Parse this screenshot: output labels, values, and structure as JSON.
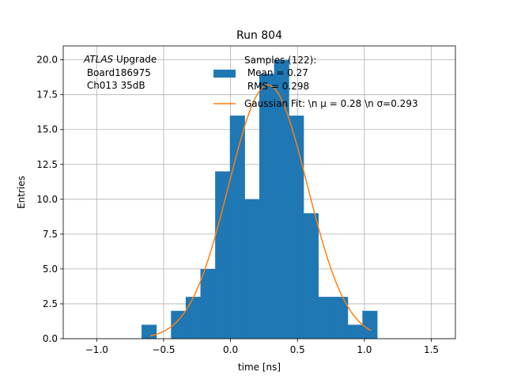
{
  "chart_data": {
    "type": "bar",
    "title": "Run 804",
    "xlabel": "time [ns]",
    "ylabel": "Entries",
    "xlim": [
      -1.25,
      1.68
    ],
    "ylim": [
      0,
      21
    ],
    "grid": true,
    "legend_placement": "top-right",
    "xticks": [
      {
        "value": -1.0,
        "label": "−1.0"
      },
      {
        "value": -0.5,
        "label": "−0.5"
      },
      {
        "value": 0.0,
        "label": "0.0"
      },
      {
        "value": 0.5,
        "label": "0.5"
      },
      {
        "value": 1.0,
        "label": "1.0"
      },
      {
        "value": 1.5,
        "label": "1.5"
      }
    ],
    "yticks": [
      {
        "value": 0.0,
        "label": "0.0"
      },
      {
        "value": 2.5,
        "label": "2.5"
      },
      {
        "value": 5.0,
        "label": "5.0"
      },
      {
        "value": 7.5,
        "label": "7.5"
      },
      {
        "value": 10.0,
        "label": "10.0"
      },
      {
        "value": 12.5,
        "label": "12.5"
      },
      {
        "value": 15.0,
        "label": "15.0"
      },
      {
        "value": 17.5,
        "label": "17.5"
      },
      {
        "value": 20.0,
        "label": "20.0"
      }
    ],
    "histogram": {
      "color": "#1f77b4",
      "bins": [
        {
          "x0": -0.665,
          "x1": -0.555,
          "count": 1
        },
        {
          "x0": -0.445,
          "x1": -0.335,
          "count": 2
        },
        {
          "x0": -0.335,
          "x1": -0.225,
          "count": 3
        },
        {
          "x0": -0.225,
          "x1": -0.115,
          "count": 5
        },
        {
          "x0": -0.115,
          "x1": -0.005,
          "count": 12
        },
        {
          "x0": -0.005,
          "x1": 0.105,
          "count": 16
        },
        {
          "x0": 0.105,
          "x1": 0.215,
          "count": 10
        },
        {
          "x0": 0.215,
          "x1": 0.325,
          "count": 19
        },
        {
          "x0": 0.325,
          "x1": 0.435,
          "count": 20
        },
        {
          "x0": 0.435,
          "x1": 0.545,
          "count": 16
        },
        {
          "x0": 0.545,
          "x1": 0.655,
          "count": 9
        },
        {
          "x0": 0.655,
          "x1": 0.765,
          "count": 3
        },
        {
          "x0": 0.765,
          "x1": 0.875,
          "count": 3
        },
        {
          "x0": 0.875,
          "x1": 0.985,
          "count": 1
        },
        {
          "x0": 0.985,
          "x1": 1.095,
          "count": 2
        }
      ]
    },
    "fit": {
      "color": "#ff7f0e",
      "mu": 0.28,
      "sigma": 0.293,
      "amplitude": 18.2,
      "x_range": [
        -0.6,
        1.05
      ]
    },
    "legend": {
      "samples_lines": [
        "Samples (122):",
        " Mean = 0.27",
        " RMS = 0.298"
      ],
      "fit_label": "Gaussian Fit: \\n μ = 0.28 \\n σ=0.293"
    },
    "annotation": {
      "line1_italic": "ATLAS",
      "line1_rest": " Upgrade",
      "line2": " Board186975",
      "line3": " Ch013 35dB"
    }
  }
}
